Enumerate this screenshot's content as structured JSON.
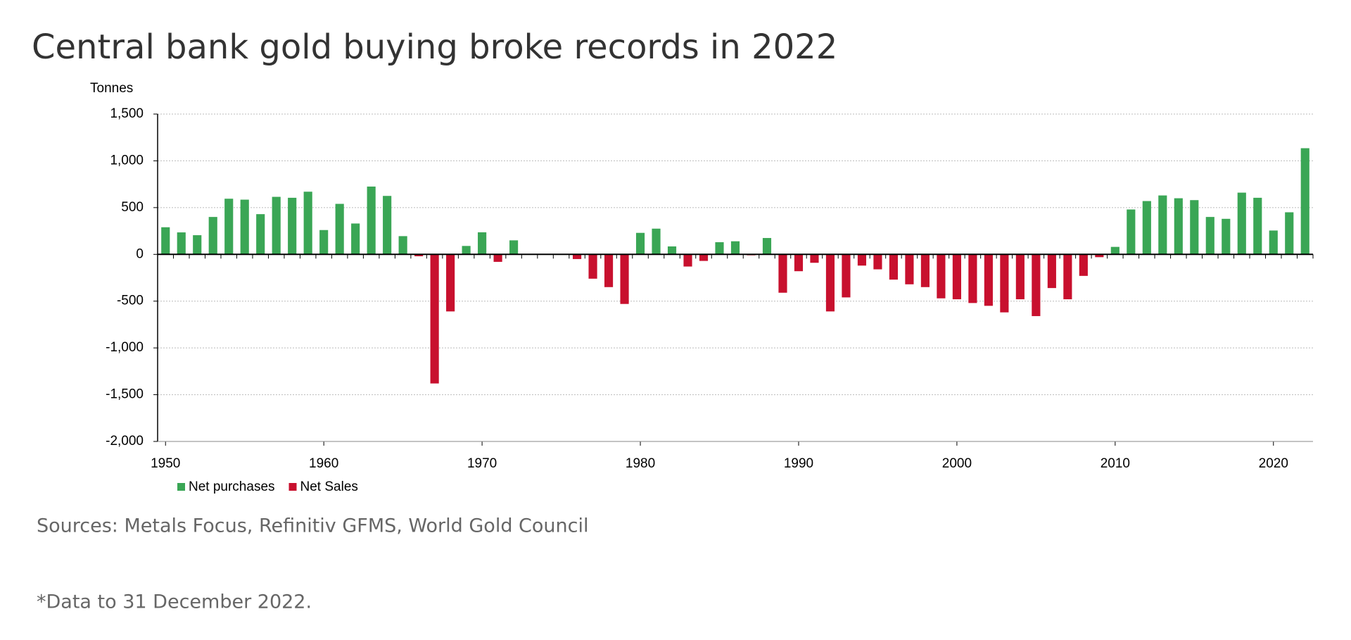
{
  "chart_data": {
    "type": "bar",
    "title": "Central bank gold buying broke records in 2022",
    "y_label": "Tonnes",
    "source": "Sources: Metals Focus, Refinitiv GFMS, World Gold Council",
    "footnote": "*Data to 31 December 2022.",
    "x": [
      1950,
      1951,
      1952,
      1953,
      1954,
      1955,
      1956,
      1957,
      1958,
      1959,
      1960,
      1961,
      1962,
      1963,
      1964,
      1965,
      1966,
      1967,
      1968,
      1969,
      1970,
      1971,
      1972,
      1973,
      1974,
      1975,
      1976,
      1977,
      1978,
      1979,
      1980,
      1981,
      1982,
      1983,
      1984,
      1985,
      1986,
      1987,
      1988,
      1989,
      1990,
      1991,
      1992,
      1993,
      1994,
      1995,
      1996,
      1997,
      1998,
      1999,
      2000,
      2001,
      2002,
      2003,
      2004,
      2005,
      2006,
      2007,
      2008,
      2009,
      2010,
      2011,
      2012,
      2013,
      2014,
      2015,
      2016,
      2017,
      2018,
      2019,
      2020,
      2021,
      2022
    ],
    "series": [
      {
        "name": "Net purchases",
        "color": "#3aa655",
        "values": [
          290,
          235,
          205,
          400,
          595,
          585,
          430,
          615,
          605,
          670,
          260,
          540,
          330,
          725,
          625,
          195,
          null,
          null,
          null,
          90,
          236,
          null,
          150,
          null,
          null,
          null,
          null,
          null,
          null,
          null,
          230,
          275,
          85,
          null,
          null,
          130,
          140,
          null,
          175,
          null,
          null,
          null,
          null,
          null,
          null,
          null,
          null,
          null,
          null,
          null,
          null,
          null,
          null,
          null,
          null,
          null,
          null,
          null,
          null,
          null,
          80,
          480,
          570,
          630,
          600,
          580,
          400,
          380,
          660,
          605,
          255,
          450,
          1135
        ]
      },
      {
        "name": "Net Sales",
        "color": "#c8102e",
        "values": [
          null,
          null,
          null,
          null,
          null,
          null,
          null,
          null,
          null,
          null,
          null,
          null,
          null,
          null,
          null,
          null,
          -20,
          -1380,
          -610,
          null,
          null,
          -80,
          null,
          null,
          null,
          null,
          -50,
          -260,
          -350,
          -530,
          null,
          null,
          null,
          -130,
          -70,
          null,
          null,
          -10,
          null,
          -410,
          -180,
          -90,
          -610,
          -460,
          -120,
          -160,
          -270,
          -320,
          -350,
          -470,
          -480,
          -520,
          -550,
          -620,
          -480,
          -660,
          -360,
          -480,
          -230,
          -30,
          null,
          null,
          null,
          null,
          null,
          null,
          null,
          null,
          null,
          null,
          null,
          null,
          null
        ]
      }
    ],
    "xlim": [
      1949.5,
      2022.5
    ],
    "xticks": [
      1950,
      1960,
      1970,
      1980,
      1990,
      2000,
      2010,
      2020
    ],
    "ylim": [
      -2000,
      1500
    ],
    "yticks": [
      {
        "value": -2000,
        "label": "-2,000"
      },
      {
        "value": -1500,
        "label": "-1,500"
      },
      {
        "value": -1000,
        "label": "-1,000"
      },
      -500,
      0,
      500,
      {
        "value": 1000,
        "label": "1,000"
      },
      {
        "value": 1500,
        "label": "1,500"
      }
    ],
    "grid": true,
    "legend": "bottom-left"
  }
}
